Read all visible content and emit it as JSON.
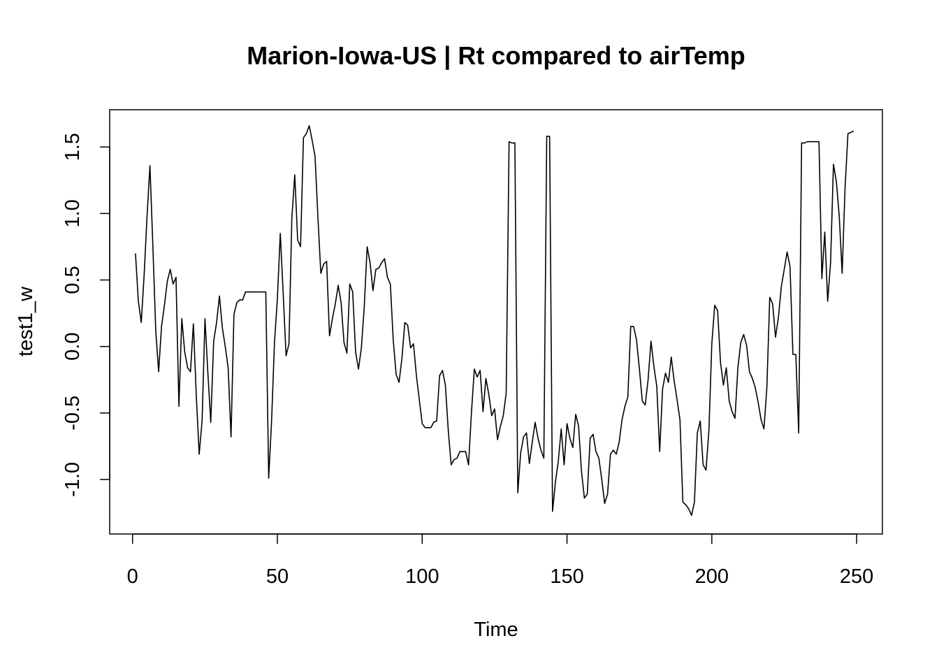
{
  "chart_data": {
    "type": "line",
    "title": "Marion-Iowa-US | Rt compared to airTemp",
    "xlabel": "Time",
    "ylabel": "test1_w",
    "xlim": [
      -7.9,
      258.9
    ],
    "ylim": [
      -1.41,
      1.78
    ],
    "xticks": [
      0,
      50,
      100,
      150,
      200,
      250
    ],
    "xtick_labels": [
      "0",
      "50",
      "100",
      "150",
      "200",
      "250"
    ],
    "yticks": [
      -1.0,
      -0.5,
      0.0,
      0.5,
      1.0,
      1.5
    ],
    "ytick_labels": [
      "-1.0",
      "-0.5",
      "0.0",
      "0.5",
      "1.0",
      "1.5"
    ],
    "grid": false,
    "legend": "none",
    "line_color": "#000000",
    "series": [
      {
        "values": [
          0.7,
          0.34,
          0.18,
          0.54,
          0.98,
          1.36,
          0.76,
          0.12,
          -0.19,
          0.15,
          0.31,
          0.49,
          0.58,
          0.47,
          0.52,
          -0.45,
          0.21,
          -0.04,
          -0.16,
          -0.19,
          0.17,
          -0.37,
          -0.81,
          -0.56,
          0.21,
          -0.2,
          -0.57,
          0.04,
          0.18,
          0.38,
          0.14,
          0.0,
          -0.16,
          -0.68,
          0.24,
          0.33,
          0.35,
          0.35,
          0.41,
          0.41,
          0.41,
          0.41,
          0.41,
          0.41,
          0.41,
          0.41,
          -0.99,
          -0.56,
          0.03,
          0.36,
          0.85,
          0.4,
          -0.07,
          0.02,
          0.97,
          1.29,
          0.8,
          0.75,
          1.57,
          1.6,
          1.66,
          1.55,
          1.43,
          0.97,
          0.55,
          0.62,
          0.64,
          0.08,
          0.21,
          0.32,
          0.46,
          0.33,
          0.03,
          -0.05,
          0.47,
          0.41,
          -0.04,
          -0.17,
          -0.01,
          0.3,
          0.75,
          0.63,
          0.42,
          0.58,
          0.59,
          0.63,
          0.66,
          0.52,
          0.47,
          0.05,
          -0.21,
          -0.27,
          -0.09,
          0.18,
          0.16,
          -0.01,
          0.02,
          -0.22,
          -0.4,
          -0.58,
          -0.61,
          -0.61,
          -0.61,
          -0.57,
          -0.56,
          -0.22,
          -0.18,
          -0.29,
          -0.63,
          -0.89,
          -0.85,
          -0.84,
          -0.79,
          -0.79,
          -0.79,
          -0.89,
          -0.5,
          -0.17,
          -0.23,
          -0.18,
          -0.49,
          -0.24,
          -0.36,
          -0.52,
          -0.47,
          -0.7,
          -0.6,
          -0.52,
          -0.35,
          1.54,
          1.53,
          1.53,
          -1.1,
          -0.8,
          -0.68,
          -0.65,
          -0.88,
          -0.72,
          -0.57,
          -0.69,
          -0.78,
          -0.84,
          1.58,
          1.58,
          -1.24,
          -1.02,
          -0.86,
          -0.62,
          -0.89,
          -0.58,
          -0.69,
          -0.76,
          -0.51,
          -0.6,
          -0.94,
          -1.14,
          -1.11,
          -0.69,
          -0.66,
          -0.79,
          -0.84,
          -1.0,
          -1.18,
          -1.11,
          -0.81,
          -0.78,
          -0.81,
          -0.72,
          -0.55,
          -0.45,
          -0.38,
          0.15,
          0.15,
          0.05,
          -0.17,
          -0.41,
          -0.44,
          -0.25,
          0.04,
          -0.15,
          -0.3,
          -0.79,
          -0.32,
          -0.2,
          -0.27,
          -0.08,
          -0.26,
          -0.4,
          -0.55,
          -1.17,
          -1.19,
          -1.22,
          -1.27,
          -1.17,
          -0.65,
          -0.56,
          -0.89,
          -0.93,
          -0.63,
          0.02,
          0.31,
          0.27,
          -0.12,
          -0.29,
          -0.16,
          -0.41,
          -0.49,
          -0.54,
          -0.16,
          0.03,
          0.09,
          0.01,
          -0.19,
          -0.24,
          -0.31,
          -0.42,
          -0.55,
          -0.62,
          -0.31,
          0.37,
          0.32,
          0.07,
          0.22,
          0.45,
          0.58,
          0.71,
          0.6,
          -0.06,
          -0.06,
          -0.65,
          1.53,
          1.53,
          1.54,
          1.54,
          1.54,
          1.54,
          1.54,
          0.51,
          0.86,
          0.34,
          0.63,
          1.37,
          1.24,
          0.98,
          0.55,
          1.19,
          1.6,
          1.61,
          1.62
        ]
      }
    ]
  }
}
